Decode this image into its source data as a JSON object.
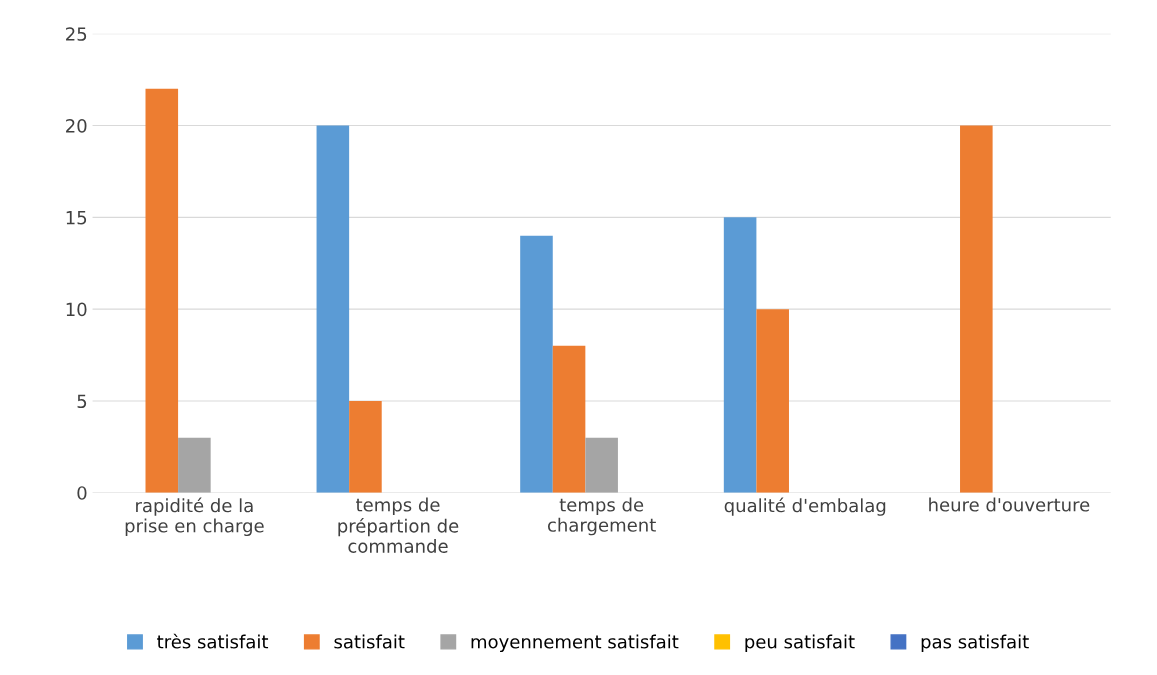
{
  "chart_data": {
    "type": "bar",
    "categories": [
      "rapidité de la prise en charge",
      "temps de prépartion de commande",
      "temps de chargement",
      "qualité d'embalag",
      "heure d'ouverture"
    ],
    "series": [
      {
        "name": "très satisfait",
        "color": "#5b9bd5",
        "values": [
          0,
          20,
          14,
          15,
          0
        ]
      },
      {
        "name": "satisfait",
        "color": "#ed7d31",
        "values": [
          22,
          5,
          8,
          10,
          20
        ]
      },
      {
        "name": "moyennement satisfait",
        "color": "#a5a5a5",
        "values": [
          3,
          0,
          3,
          0,
          0
        ]
      },
      {
        "name": "peu satisfait",
        "color": "#ffc000",
        "values": [
          0,
          0,
          0,
          0,
          0
        ]
      },
      {
        "name": "pas satisfait",
        "color": "#4472c4",
        "values": [
          0,
          0,
          0,
          0,
          0
        ]
      }
    ],
    "ylim": [
      0,
      25
    ],
    "yticks": [
      0,
      5,
      10,
      15,
      20,
      25
    ],
    "grid": "y",
    "legend": "bottom"
  }
}
